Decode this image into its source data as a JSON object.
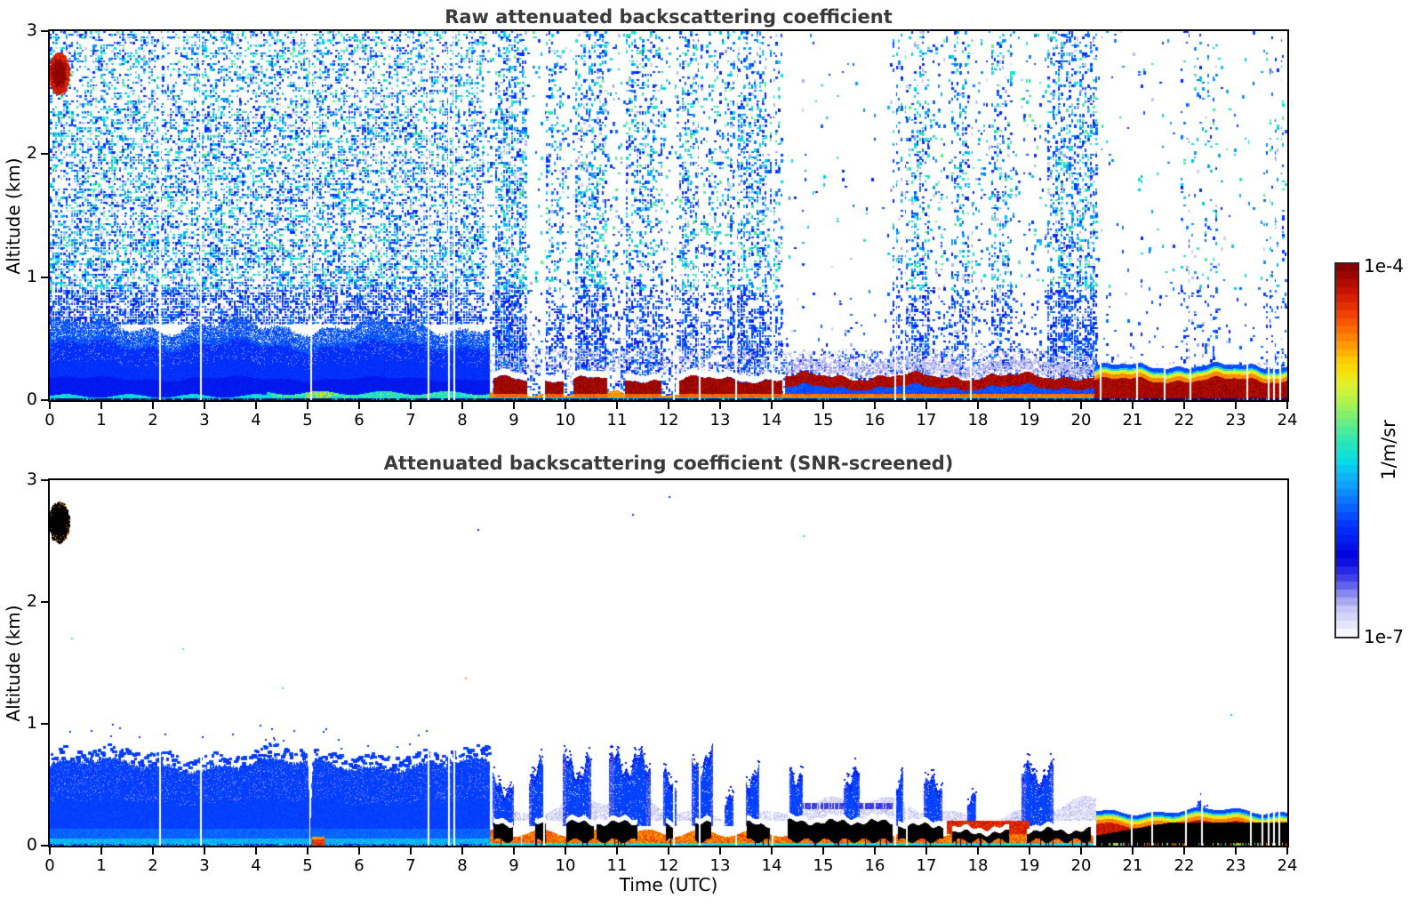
{
  "figure": {
    "background": "#ffffff",
    "title_color": "#3a3a3a",
    "text_color": "#000000"
  },
  "colorbar": {
    "max_label": "1e-4",
    "min_label": "1e-7",
    "units_label": "1/m/sr"
  },
  "chart_data": {
    "type": "heatmap",
    "x_unit": "hours UTC",
    "xlim": [
      0,
      24
    ],
    "ylim": [
      0,
      3
    ],
    "value_scale": "log10",
    "value_range_labels": [
      "1e-7",
      "1e-4"
    ],
    "value_units": "1/m/sr",
    "colormap_stops": [
      [
        0.0,
        "#ffffff"
      ],
      [
        0.03,
        "#e6e6fb"
      ],
      [
        0.07,
        "#c8c8f5"
      ],
      [
        0.11,
        "#9090f0"
      ],
      [
        0.15,
        "#4848ee"
      ],
      [
        0.21,
        "#0000dd"
      ],
      [
        0.3,
        "#0436ff"
      ],
      [
        0.4,
        "#0f9bff"
      ],
      [
        0.47,
        "#06dce6"
      ],
      [
        0.54,
        "#3ce9a7"
      ],
      [
        0.61,
        "#97f25c"
      ],
      [
        0.67,
        "#dff231"
      ],
      [
        0.73,
        "#ffd500"
      ],
      [
        0.8,
        "#ff8400"
      ],
      [
        0.87,
        "#f03c00"
      ],
      [
        0.93,
        "#c41000"
      ],
      [
        1.0,
        "#7a0000"
      ]
    ],
    "panels": [
      {
        "id": "raw",
        "title": "Raw attenuated backscattering coefficient",
        "ylabel": "Altitude (km)",
        "xlabel": "",
        "xticks": [
          0,
          1,
          2,
          3,
          4,
          5,
          6,
          7,
          8,
          9,
          10,
          11,
          12,
          13,
          14,
          15,
          16,
          17,
          18,
          19,
          20,
          21,
          22,
          23,
          24
        ],
        "xtick_labels": [
          "0",
          "1",
          "2",
          "3",
          "4",
          "5",
          "6",
          "7",
          "8",
          "9",
          "10",
          "11",
          "12",
          "13",
          "14",
          "15",
          "16",
          "17",
          "18",
          "19",
          "20",
          "21",
          "22",
          "23",
          "24"
        ],
        "yticks": [
          0,
          1,
          2,
          3
        ],
        "ytick_labels": [
          "0",
          "1",
          "2",
          "3"
        ],
        "noise_density_profile": [
          [
            2.35,
            3.01,
            0.4
          ],
          [
            1.3,
            2.35,
            0.5
          ],
          [
            0.95,
            1.3,
            0.58
          ],
          [
            0.7,
            0.95,
            0.76
          ],
          [
            0.5,
            0.7,
            0.9
          ],
          [
            0,
            0.5,
            1.0
          ]
        ],
        "time_density": [
          [
            8.4,
            8.6,
            0.3
          ],
          [
            9.25,
            9.6,
            0.12
          ],
          [
            9.6,
            9.95,
            0.55
          ],
          [
            9.95,
            10.15,
            0.18
          ],
          [
            10.15,
            10.8,
            0.8
          ],
          [
            10.8,
            11.15,
            0.22
          ],
          [
            11.15,
            11.85,
            0.7
          ],
          [
            11.85,
            12.2,
            0.25
          ],
          [
            12.2,
            12.6,
            0.7
          ],
          [
            12.6,
            13.1,
            0.45
          ],
          [
            13.1,
            13.9,
            0.8
          ],
          [
            13.9,
            14.2,
            0.45
          ],
          [
            14.2,
            16.3,
            0.035
          ],
          [
            16.3,
            16.7,
            0.45
          ],
          [
            16.7,
            17.05,
            0.75
          ],
          [
            17.05,
            17.45,
            0.25
          ],
          [
            17.45,
            17.85,
            0.6
          ],
          [
            17.85,
            18.25,
            0.2
          ],
          [
            18.25,
            18.65,
            0.55
          ],
          [
            18.65,
            19.3,
            0.18
          ],
          [
            19.3,
            20.3,
            0.75
          ],
          [
            20.3,
            21.9,
            0.05
          ],
          [
            21.9,
            22.65,
            0.22
          ],
          [
            22.65,
            23.55,
            0.04
          ],
          [
            23.55,
            24,
            0.25
          ]
        ],
        "wash": {
          "t_end": 8.55,
          "z_top": 0.58
        },
        "surface": {
          "a_end": 14.25,
          "b_end": 20.25,
          "c_top": 0.275
        },
        "blob": {
          "t_center": 0.17,
          "z_center": 2.66,
          "t_radius": 0.19,
          "z_radius": 0.16
        },
        "gaps": [
          2.12,
          2.92,
          5.06,
          7.32,
          7.72,
          7.82,
          9.57,
          12.08,
          12.58,
          13.29,
          14.0,
          16.38,
          16.55,
          17.85,
          20.36,
          21.07,
          21.6,
          22.1,
          23.2,
          23.62,
          23.72,
          23.85
        ]
      },
      {
        "id": "screened",
        "title": "Attenuated backscattering coefficient (SNR-screened)",
        "ylabel": "Altitude (km)",
        "xlabel": "Time (UTC)",
        "xticks": [
          0,
          1,
          2,
          3,
          4,
          5,
          6,
          7,
          8,
          9,
          10,
          11,
          12,
          13,
          14,
          15,
          16,
          17,
          18,
          19,
          20,
          21,
          22,
          23,
          24
        ],
        "xtick_labels": [
          "0",
          "1",
          "2",
          "3",
          "4",
          "5",
          "6",
          "7",
          "8",
          "9",
          "10",
          "11",
          "12",
          "13",
          "14",
          "15",
          "16",
          "17",
          "18",
          "19",
          "20",
          "21",
          "22",
          "23",
          "24"
        ],
        "yticks": [
          0,
          1,
          2,
          3
        ],
        "ytick_labels": [
          "0",
          "1",
          "2",
          "3"
        ],
        "layer": {
          "t_end": 8.55,
          "z_top": 0.66
        },
        "red_spot": [
          5.1,
          5.32
        ],
        "haze": {
          "t0": 8.55,
          "t1": 20.3,
          "z_base": 0.3
        },
        "blue_streak": [
          14.4,
          16.35,
          0.3,
          0.35
        ],
        "plumes": [
          [
            8.6,
            9.0,
            0.55
          ],
          [
            9.3,
            9.6,
            0.68
          ],
          [
            9.95,
            10.5,
            0.72
          ],
          [
            10.85,
            11.65,
            0.75
          ],
          [
            11.9,
            12.15,
            0.6
          ],
          [
            12.45,
            12.85,
            0.78
          ],
          [
            13.1,
            13.25,
            0.45
          ],
          [
            13.5,
            13.75,
            0.65
          ],
          [
            14.35,
            14.6,
            0.68
          ],
          [
            15.4,
            15.7,
            0.62
          ],
          [
            16.4,
            16.55,
            0.6
          ],
          [
            16.95,
            17.3,
            0.55
          ],
          [
            17.8,
            17.95,
            0.45
          ],
          [
            18.85,
            19.45,
            0.65
          ],
          [
            22.25,
            22.45,
            0.35
          ]
        ],
        "surface_base": {
          "t0": 8.55,
          "t1": 20.25
        },
        "red_band": [
          17.4,
          19.0,
          0.1,
          0.2
        ],
        "black_bars": [
          [
            8.62,
            8.98,
            0.17
          ],
          [
            9.42,
            9.62,
            0.17
          ],
          [
            10.02,
            10.55,
            0.18
          ],
          [
            10.62,
            11.38,
            0.18
          ],
          [
            11.95,
            12.08,
            0.15
          ],
          [
            12.52,
            12.82,
            0.17
          ],
          [
            13.52,
            13.95,
            0.17
          ],
          [
            14.32,
            16.33,
            0.19
          ],
          [
            16.45,
            17.32,
            0.16
          ],
          [
            17.5,
            18.6,
            0.1
          ],
          [
            18.95,
            20.18,
            0.12
          ]
        ],
        "stack": {
          "t0": 20.3,
          "t1": 24,
          "z_top": 0.28
        },
        "blob": {
          "t_center": 0.17,
          "z_center": 2.66,
          "t_radius": 0.19,
          "z_radius": 0.16
        },
        "wedge_gaps": [
          5.06,
          9.15
        ],
        "gaps": [
          2.12,
          2.92,
          7.32,
          7.72,
          7.82,
          9.57,
          12.08,
          12.58,
          13.29,
          14.0,
          16.38,
          16.6,
          20.97,
          21.37,
          22.02,
          22.32,
          23.27,
          23.5,
          23.62,
          23.72,
          23.82
        ],
        "stray_dots": [
          [
            0.42,
            1.71,
            "green"
          ],
          [
            2.57,
            1.62,
            "green"
          ],
          [
            8.05,
            1.38,
            "orange"
          ],
          [
            12.0,
            2.87,
            "blue"
          ],
          [
            11.3,
            2.72,
            "blue"
          ],
          [
            22.9,
            1.08,
            "cyan"
          ],
          [
            14.6,
            2.55,
            "cyan"
          ],
          [
            8.3,
            2.6,
            "blue"
          ],
          [
            4.5,
            1.3,
            "green"
          ]
        ]
      }
    ]
  }
}
